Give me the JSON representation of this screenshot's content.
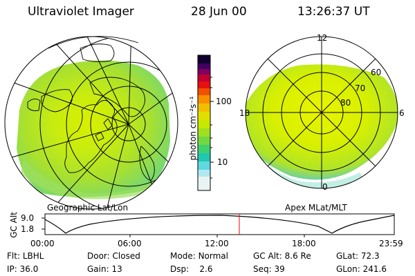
{
  "header": {
    "title": "Ultraviolet Imager",
    "date": "28 Jun 00",
    "time": "13:26:37 UT"
  },
  "left_map": {
    "caption": "Geographic Lat/Lon"
  },
  "right_map": {
    "caption": "Apex MLat/MLT",
    "mlt_labels": [
      "12",
      "18",
      "6",
      "0"
    ],
    "lat_labels": [
      "60",
      "70",
      "80"
    ]
  },
  "colorbar": {
    "unit_label": "photon cm⁻²s⁻¹",
    "ticks": [
      {
        "label": "100",
        "value": 100
      },
      {
        "label": "10",
        "value": 10
      }
    ]
  },
  "orbit_plot": {
    "ylabel": "GC Alt",
    "yticks": [
      "9.0",
      "1.8"
    ],
    "xticks": [
      "00:00",
      "06:00",
      "12:00",
      "18:00",
      "23:59"
    ],
    "current_time_marker": "13:26:37",
    "marker_color": "#ff0000"
  },
  "info": {
    "row1": [
      {
        "key": "Flt:",
        "value": "LBHL"
      },
      {
        "key": "Door:",
        "value": "Closed"
      },
      {
        "key": "Mode:",
        "value": "Normal"
      },
      {
        "key": "GC Alt:",
        "value": "8.6 Re"
      },
      {
        "key": "GLat:",
        "value": "72.3"
      }
    ],
    "row2": [
      {
        "key": "IP:",
        "value": "36.0"
      },
      {
        "key": "Gain:",
        "value": "13"
      },
      {
        "key": "Dsp:",
        "value": "2.6"
      },
      {
        "key": "Seq:",
        "value": "39"
      },
      {
        "key": "GLon:",
        "value": "241.6"
      }
    ]
  }
}
